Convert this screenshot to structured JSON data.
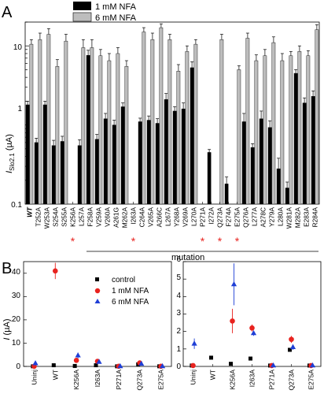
{
  "colors": {
    "nfa1": "#000000",
    "nfa6": "#bdbdbd",
    "control": "#000000",
    "nfa1_b": "#e8231f",
    "nfa6_b": "#1f3fd6",
    "star": "#e8231f"
  },
  "panel_a": {
    "label": "A",
    "legend": [
      "1 mM NFA",
      "6 mM NFA"
    ],
    "ylabel": "I",
    "ylabel_sub": "Slo2.1",
    "ylabel_unit": " (µA)",
    "xlabel": "mutation",
    "yticks": [
      "0.1",
      "1",
      "10"
    ]
  },
  "panel_b": {
    "label": "B",
    "legend": [
      "control",
      "1 mM NFA",
      "6 mM NFA"
    ],
    "ylabel": "I",
    "ylabel_unit": " (µA)",
    "left_yticks": [
      "0",
      "10",
      "20",
      "30",
      "40"
    ],
    "right_yticks": [
      "0",
      "1",
      "2",
      "3",
      "4",
      "5",
      "6"
    ]
  },
  "chart_data": [
    {
      "type": "bar",
      "panel": "A",
      "title": "",
      "xlabel": "mutation",
      "ylabel": "I Slo2.1 (µA)",
      "yscale": "log",
      "ylim": [
        0.1,
        20
      ],
      "categories": [
        "WT",
        "T252A",
        "W253A",
        "S254A",
        "S255A",
        "K256A",
        "L257A",
        "F258A",
        "V259A",
        "V260A",
        "A261G",
        "M262A",
        "I263A",
        "C264A",
        "V265A",
        "A266C",
        "L267A",
        "Y268A",
        "V269A",
        "L270A",
        "P271A",
        "I272A",
        "Q273A",
        "F274A",
        "E275A",
        "Q276A",
        "L277A",
        "A278C",
        "Y279A",
        "L280A",
        "W281A",
        "M282A",
        "E283A",
        "R284A"
      ],
      "starred": [
        "K256A",
        "I263A",
        "P271A",
        "Q273A",
        "E275A"
      ],
      "series": [
        {
          "name": "1 mM NFA",
          "values": [
            1.8,
            0.6,
            1.8,
            0.55,
            0.62,
            null,
            0.55,
            7.6,
            0.66,
            1.2,
            1.0,
            1.7,
            null,
            1.1,
            1.15,
            1.05,
            2.1,
            1.5,
            1.6,
            5.3,
            null,
            0.45,
            null,
            0.18,
            null,
            1.1,
            0.52,
            1.2,
            0.93,
            0.28,
            0.16,
            4.5,
            1.9,
            2.3
          ],
          "errors": [
            0.2,
            0.08,
            0.2,
            0.09,
            0.1,
            null,
            0.1,
            1.2,
            0.1,
            0.2,
            0.15,
            0.2,
            null,
            0.12,
            0.15,
            0.15,
            0.4,
            0.2,
            0.3,
            1.0,
            null,
            0.04,
            null,
            0.04,
            null,
            0.3,
            0.06,
            0.3,
            0.2,
            0.1,
            0.03,
            0.5,
            0.3,
            0.4
          ]
        },
        {
          "name": "6 mM NFA",
          "values": [
            10.5,
            12.0,
            14.0,
            5.5,
            11.5,
            null,
            9.5,
            9.5,
            7.5,
            6.5,
            8.0,
            5.5,
            null,
            15.0,
            12.0,
            17.0,
            12.0,
            4.8,
            8.5,
            10.5,
            null,
            null,
            12.0,
            null,
            5.0,
            12.5,
            6.5,
            7.5,
            11.0,
            6.5,
            7.5,
            8.5,
            7.5,
            16.0
          ],
          "errors": [
            1.5,
            2.5,
            2.5,
            1.2,
            2.5,
            null,
            2.5,
            2.5,
            1.5,
            1.5,
            1.5,
            1.0,
            null,
            2.0,
            2.5,
            2.0,
            2.0,
            1.0,
            1.5,
            1.5,
            null,
            null,
            2.0,
            null,
            0.6,
            2.0,
            1.2,
            1.5,
            2.0,
            1.5,
            1.0,
            1.5,
            1.2,
            2.5
          ]
        }
      ]
    },
    {
      "type": "scatter",
      "panel": "B-left",
      "title": "",
      "xlabel": "",
      "ylabel": "I (µA)",
      "ylim": [
        0,
        45
      ],
      "categories": [
        "Uninj",
        "WT",
        "K256A",
        "I263A",
        "P271A",
        "Q273A",
        "E275A"
      ],
      "series": [
        {
          "name": "control",
          "values": [
            0.05,
            0.5,
            0.2,
            0.5,
            0.05,
            0.9,
            0.05
          ],
          "errors": [
            0,
            0,
            0,
            0,
            0,
            0,
            0
          ]
        },
        {
          "name": "1 mM NFA",
          "values": [
            0.05,
            41.0,
            2.6,
            2.2,
            0.05,
            1.5,
            0.05
          ],
          "errors": [
            0,
            3.5,
            1.0,
            0.3,
            0,
            0.2,
            0
          ]
        },
        {
          "name": "6 mM NFA",
          "values": [
            1.3,
            null,
            4.7,
            1.9,
            0.05,
            1.1,
            0.05
          ],
          "errors": [
            0.3,
            null,
            1.2,
            0.2,
            0,
            0.2,
            0
          ]
        }
      ]
    },
    {
      "type": "scatter",
      "panel": "B-right",
      "title": "",
      "xlabel": "",
      "ylabel": "I (µA)",
      "ylim": [
        0,
        6
      ],
      "categories": [
        "Uninj",
        "WT",
        "K256A",
        "I263A",
        "P271A",
        "Q273A",
        "E275A"
      ],
      "series": [
        {
          "name": "control",
          "values": [
            0.05,
            0.5,
            0.15,
            0.45,
            0.05,
            0.95,
            0.05
          ],
          "errors": [
            0,
            0,
            0,
            0.05,
            0,
            0.1,
            0
          ]
        },
        {
          "name": "1 mM NFA",
          "values": [
            0.05,
            null,
            2.6,
            2.2,
            0.05,
            1.55,
            0.05
          ],
          "errors": [
            0,
            null,
            0.7,
            0.2,
            0,
            0.2,
            0
          ]
        },
        {
          "name": "6 mM NFA",
          "values": [
            1.3,
            null,
            4.7,
            1.9,
            0.05,
            1.1,
            0.05
          ],
          "errors": [
            0.3,
            null,
            1.2,
            0.15,
            0,
            0.15,
            0
          ]
        }
      ]
    }
  ]
}
